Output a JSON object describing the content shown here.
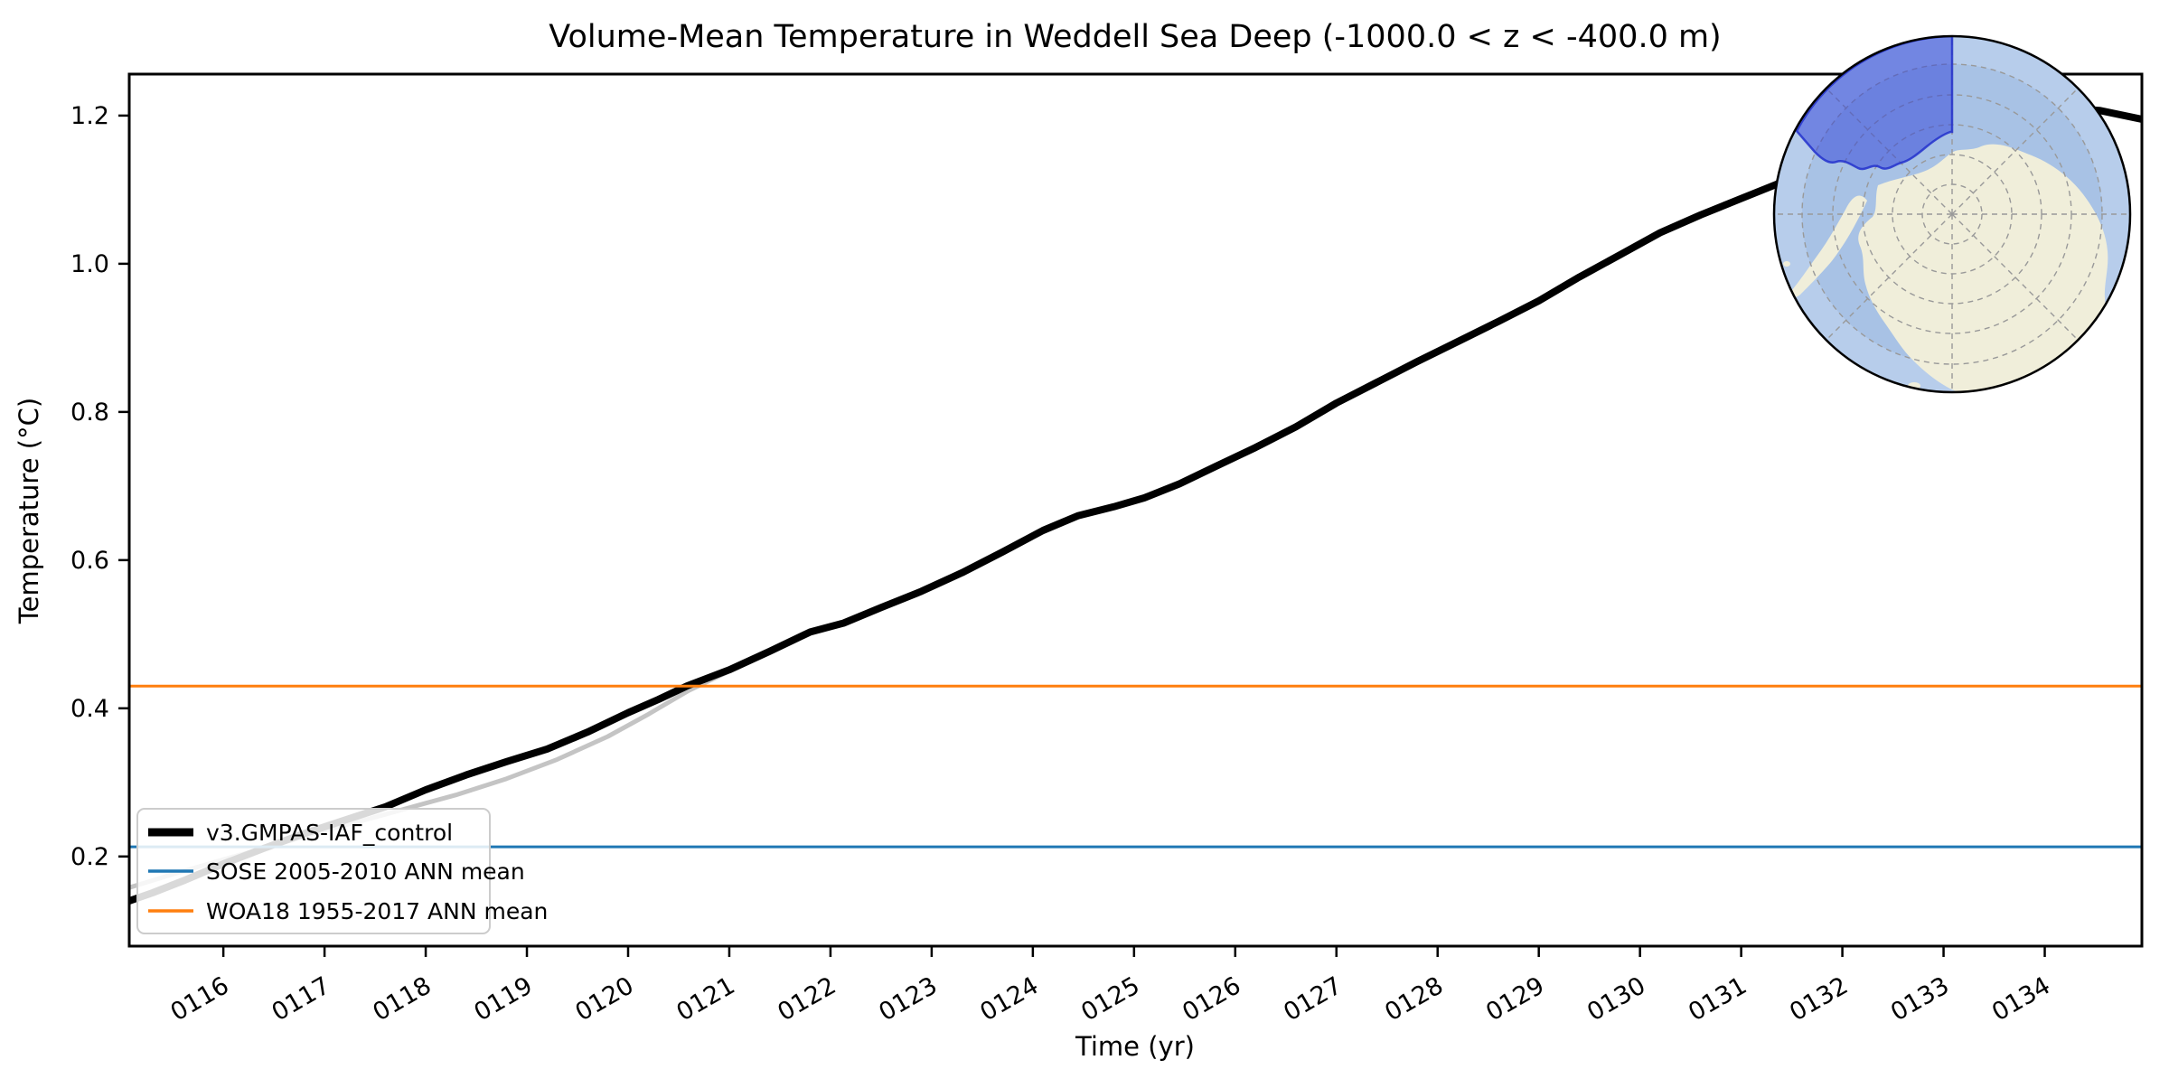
{
  "figure": {
    "title": "Volume-Mean Temperature in Weddell Sea Deep (-1000.0 < z < -400.0 m)",
    "xlabel": "Time (yr)",
    "ylabel": "Temperature (°C)"
  },
  "legend": {
    "entries": [
      {
        "label": "v3.GMPAS-IAF_control",
        "color": "#000000",
        "line_width": 9
      },
      {
        "label": "SOSE 2005-2010 ANN mean",
        "color": "#1f77b4",
        "line_width": 3.5
      },
      {
        "label": "WOA18 1955-2017 ANN mean",
        "color": "#ff7f0e",
        "line_width": 3.5
      }
    ]
  },
  "chart_data": {
    "type": "line",
    "title": "Volume-Mean Temperature in Weddell Sea Deep (-1000.0 < z < -400.0 m)",
    "xlabel": "Time (yr)",
    "ylabel": "Temperature (°C)",
    "xlim": [
      115.07,
      134.96
    ],
    "ylim": [
      0.079,
      1.256
    ],
    "grid": false,
    "legend_position": "lower left",
    "xticks": [
      116,
      117,
      118,
      119,
      120,
      121,
      122,
      123,
      124,
      125,
      126,
      127,
      128,
      129,
      130,
      131,
      132,
      133,
      134
    ],
    "xtick_labels": [
      "0116",
      "0117",
      "0118",
      "0119",
      "0120",
      "0121",
      "0122",
      "0123",
      "0124",
      "0125",
      "0126",
      "0127",
      "0128",
      "0129",
      "0130",
      "0131",
      "0132",
      "0133",
      "0134"
    ],
    "yticks": [
      0.2,
      0.4,
      0.6,
      0.8,
      1.0,
      1.2
    ],
    "ytick_labels": [
      "0.2",
      "0.4",
      "0.6",
      "0.8",
      "1.0",
      "1.2"
    ],
    "series": [
      {
        "name": "monthly values (light gray, behind running mean)",
        "color": "#c4c4c4",
        "width": 5,
        "x": [
          115.07,
          115.5,
          116.0,
          116.5,
          117.0,
          117.5,
          118.0,
          118.3,
          118.8,
          119.3,
          119.8,
          120.2,
          120.6,
          121.0,
          121.3
        ],
        "y": [
          0.158,
          0.176,
          0.196,
          0.215,
          0.235,
          0.253,
          0.272,
          0.283,
          0.305,
          0.331,
          0.362,
          0.392,
          0.424,
          0.45,
          0.47
        ]
      },
      {
        "name": "v3.GMPAS-IAF_control",
        "color": "#000000",
        "width": 8,
        "x": [
          115.07,
          115.3,
          115.6,
          116.0,
          116.4,
          116.8,
          117.2,
          117.6,
          118.0,
          118.4,
          118.8,
          119.2,
          119.6,
          120.0,
          120.3,
          120.58,
          121.0,
          121.4,
          121.8,
          122.13,
          122.5,
          122.9,
          123.3,
          123.7,
          124.1,
          124.45,
          124.8,
          125.1,
          125.45,
          125.8,
          126.2,
          126.6,
          127.0,
          127.4,
          127.8,
          128.2,
          128.6,
          129.0,
          129.4,
          129.8,
          130.2,
          130.6,
          131.0,
          131.4,
          131.8,
          132.2,
          132.6,
          133.0,
          133.4,
          133.8,
          134.2,
          134.54,
          134.96
        ],
        "y": [
          0.14,
          0.151,
          0.167,
          0.19,
          0.211,
          0.231,
          0.249,
          0.267,
          0.29,
          0.31,
          0.328,
          0.345,
          0.368,
          0.394,
          0.412,
          0.43,
          0.452,
          0.477,
          0.503,
          0.515,
          0.536,
          0.558,
          0.583,
          0.611,
          0.64,
          0.66,
          0.672,
          0.684,
          0.703,
          0.726,
          0.752,
          0.78,
          0.812,
          0.84,
          0.868,
          0.895,
          0.922,
          0.95,
          0.982,
          1.012,
          1.042,
          1.066,
          1.088,
          1.11,
          1.132,
          1.152,
          1.172,
          1.188,
          1.2,
          1.208,
          1.21,
          1.207,
          1.195
        ]
      },
      {
        "name": "SOSE 2005-2010 ANN mean",
        "color": "#1f77b4",
        "width": 3,
        "constant": 0.213
      },
      {
        "name": "WOA18 1955-2017 ANN mean",
        "color": "#ff7f0e",
        "width": 3,
        "constant": 0.43
      }
    ]
  },
  "inset_map": {
    "description": "South polar stereographic map of Antarctica with Weddell Sea Deep region highlighted",
    "ocean_color": "#a8c2e5",
    "outer_ocean_color": "#b7cdeb",
    "land_color": "#f0eeda",
    "highlight_fill": "#2e3fd9",
    "highlight_stroke": "#2331cc",
    "graticule_color": "#999999",
    "outline_color": "#000000"
  }
}
